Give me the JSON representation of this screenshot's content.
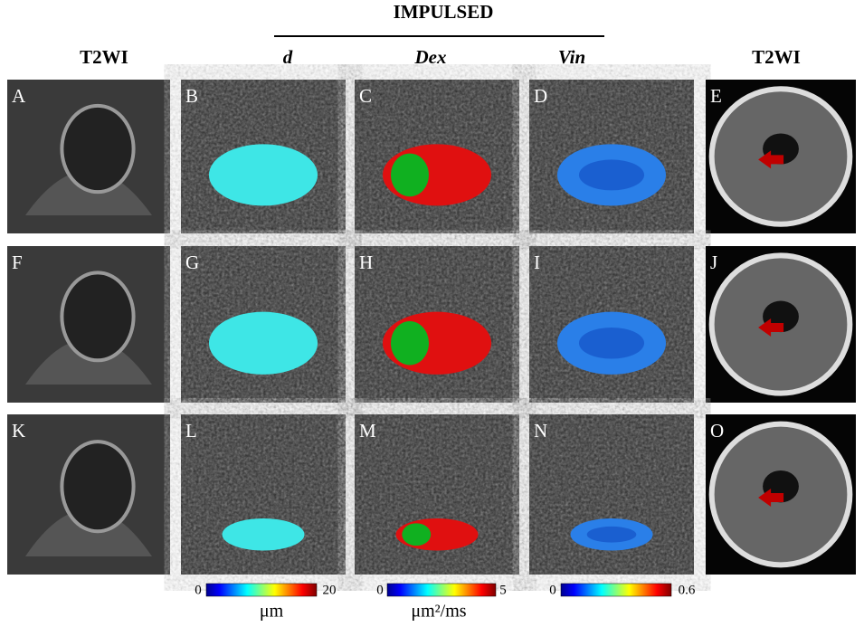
{
  "header": {
    "title": "IMPULSED"
  },
  "columns": [
    "T2WI",
    "d",
    "Dex",
    "Vin",
    "T2WI"
  ],
  "panels": [
    [
      "A",
      "B",
      "C",
      "D",
      "E"
    ],
    [
      "F",
      "G",
      "H",
      "I",
      "J"
    ],
    [
      "K",
      "L",
      "M",
      "N",
      "O"
    ]
  ],
  "colorbars": [
    {
      "min": 0,
      "max": 20,
      "unit": "μm"
    },
    {
      "min": 0,
      "max": 5,
      "unit": "μm²/ms"
    },
    {
      "min": 0,
      "max": 0.6,
      "unit": ""
    }
  ]
}
